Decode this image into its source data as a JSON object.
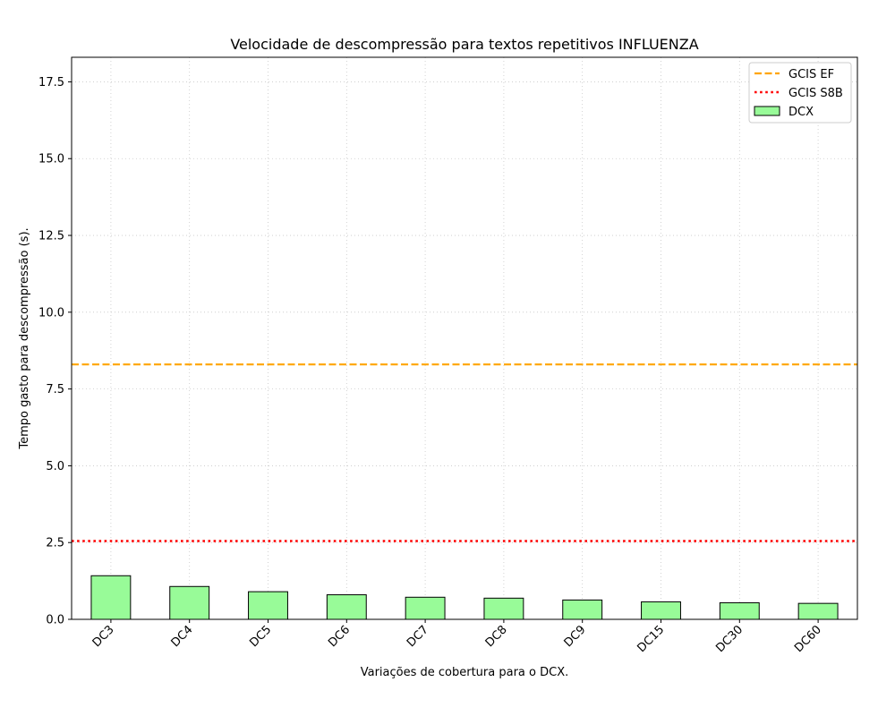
{
  "chart_data": {
    "type": "bar",
    "title": "Velocidade de descompressão para textos repetitivos INFLUENZA",
    "xlabel": "Variações de cobertura para o DCX.",
    "ylabel": "Tempo gasto para descompressão (s).",
    "categories": [
      "DC3",
      "DC4",
      "DC5",
      "DC6",
      "DC7",
      "DC8",
      "DC9",
      "DC15",
      "DC30",
      "DC60"
    ],
    "series": [
      {
        "name": "DCX",
        "values": [
          1.42,
          1.07,
          0.9,
          0.8,
          0.72,
          0.69,
          0.63,
          0.57,
          0.54,
          0.52
        ]
      }
    ],
    "reference_lines": [
      {
        "name": "GCIS EF",
        "value": 8.3,
        "style": "dashed",
        "color": "#ffa500"
      },
      {
        "name": "GCIS S8B",
        "value": 2.55,
        "style": "dotted",
        "color": "#ff0000"
      }
    ],
    "ylim": [
      0,
      18.3
    ],
    "yticks": [
      0.0,
      2.5,
      5.0,
      7.5,
      10.0,
      12.5,
      15.0,
      17.5
    ],
    "ytick_labels": [
      "0.0",
      "2.5",
      "5.0",
      "7.5",
      "10.0",
      "12.5",
      "15.0",
      "17.5"
    ],
    "grid": true,
    "legend_position": "top-right",
    "bar_color": "#98fb98",
    "bar_edge_color": "#000000"
  }
}
